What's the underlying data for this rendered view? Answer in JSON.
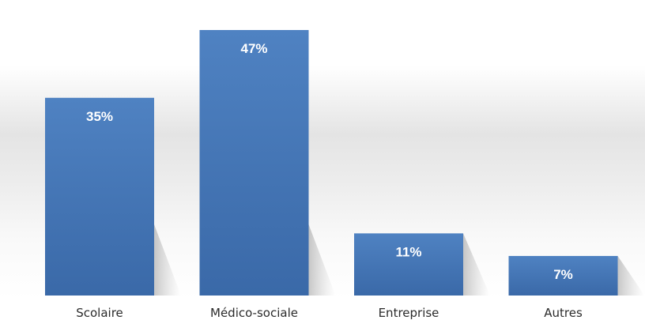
{
  "chart_data": {
    "type": "bar",
    "categories": [
      "Scolaire",
      "Médico-sociale",
      "Entreprise",
      "Autres"
    ],
    "values": [
      35,
      47,
      11,
      7
    ],
    "data_labels": [
      "35%",
      "47%",
      "11%",
      "7%"
    ],
    "unit": "%",
    "ylim": [
      0,
      47
    ],
    "grid": false,
    "legend": "none",
    "colors": {
      "bar_top": "#4f82c2",
      "bar_bottom": "#3a69a8",
      "background_mid": "#e2e2e2",
      "label_text": "#ffffff",
      "category_text": "#2b2b2b"
    }
  }
}
